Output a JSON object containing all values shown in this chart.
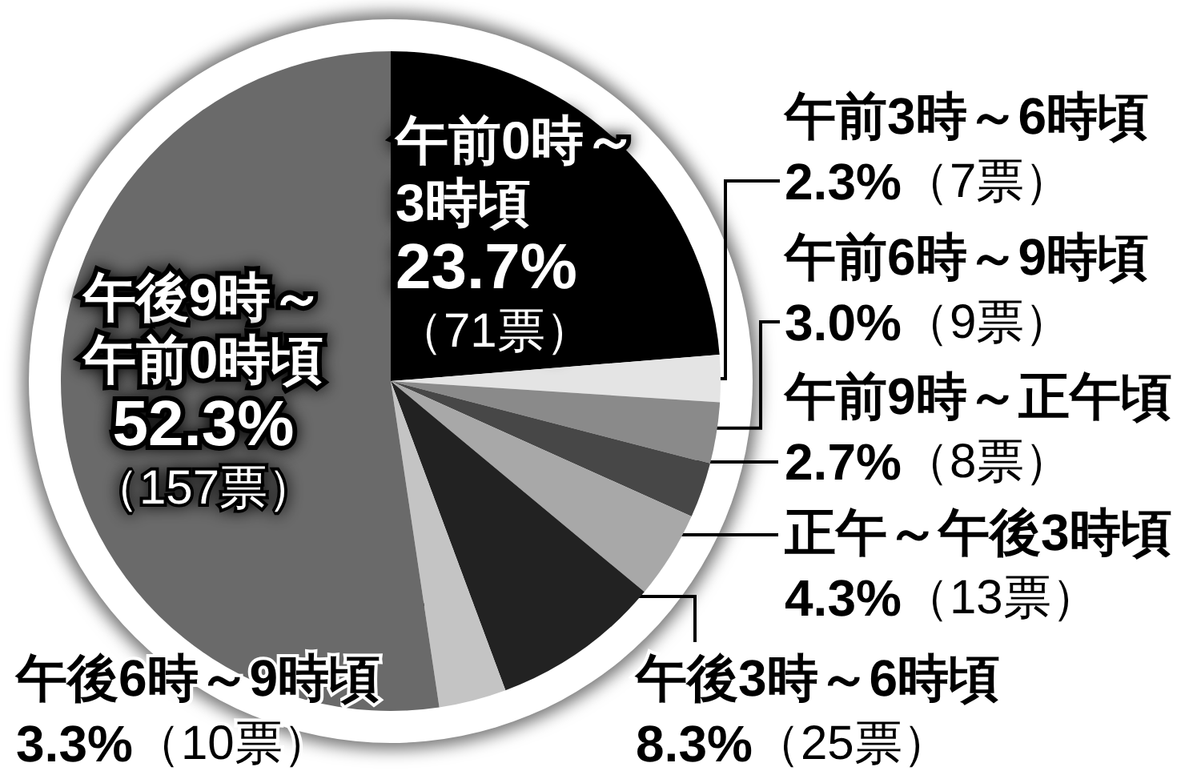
{
  "chart_data": {
    "type": "pie",
    "categories": [
      "午前0時～3時頃",
      "午前3時～6時頃",
      "午前6時～9時頃",
      "午前9時～正午頃",
      "正午～午後3時頃",
      "午後3時～6時頃",
      "午後6時～9時頃",
      "午後9時～午前0時頃"
    ],
    "values": [
      23.7,
      2.3,
      3.0,
      2.7,
      4.3,
      8.3,
      3.3,
      52.3
    ],
    "colors": [
      "#000000",
      "#e4e4e4",
      "#8a8a8a",
      "#474747",
      "#a8a8a8",
      "#222222",
      "#c4c4c4",
      "#6a6a6a"
    ],
    "value_labels": [
      "23.7%（71票）",
      "2.3%（7票）",
      "3.0%（9票）",
      "2.7%（8票）",
      "4.3%（13票）",
      "8.3%（25票）",
      "3.3%（10票）",
      "52.3%（157票）"
    ]
  }
}
